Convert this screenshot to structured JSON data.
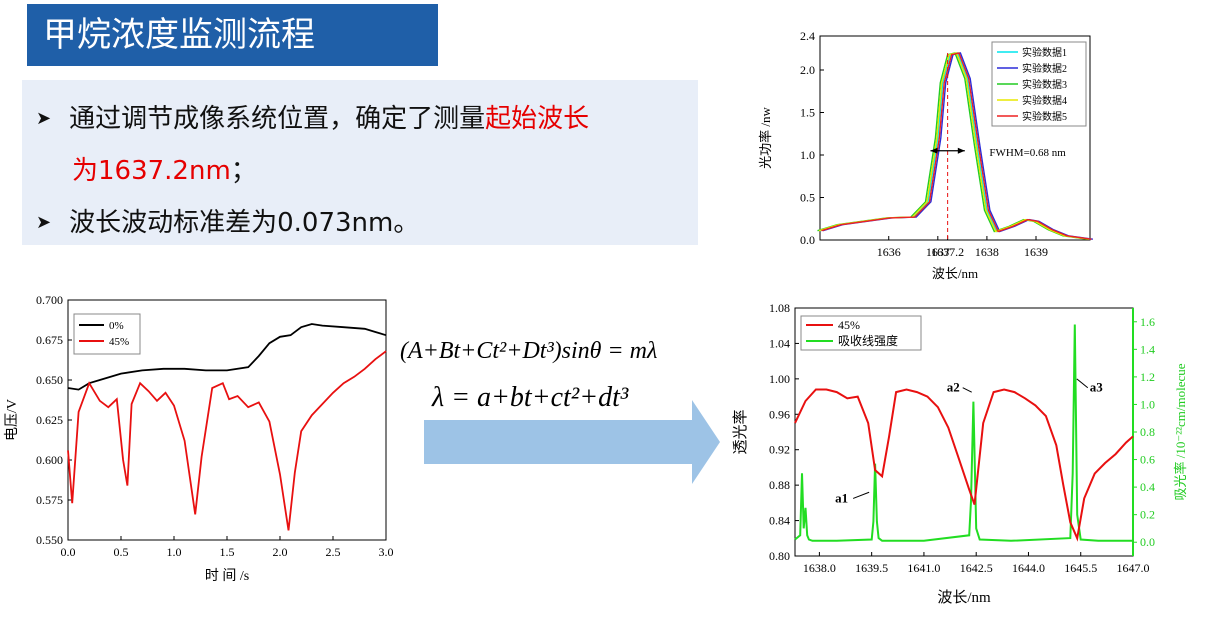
{
  "slide": {
    "title": "甲烷浓度监测流程",
    "bullets": {
      "b1_prefix": "通过调节成像系统位置，确定了测量",
      "b1_red1": "起始波长",
      "b1_red2": "为1637.2nm",
      "b1_suffix": "；",
      "b2": "波长波动标准差为0.073nm。"
    },
    "formula1": "(A+Bt+Ct²+Dt³)sinθ = mλ",
    "formula2": "λ = a+bt+ct²+dt³"
  },
  "chart_data": [
    {
      "id": "spectrum",
      "type": "line",
      "xlabel": "波长/nm",
      "ylabel": "光功率 /nw",
      "xlim": [
        1634.6,
        1640.1
      ],
      "ylim": [
        0,
        2.4
      ],
      "xticks": [
        {
          "v": 1636,
          "t": "1636"
        },
        {
          "v": 1637,
          "t": "1637"
        },
        {
          "v": 1637.2,
          "t": "1637.2"
        },
        {
          "v": 1638,
          "t": "1638"
        },
        {
          "v": 1639,
          "t": "1639"
        }
      ],
      "yticks": [
        0.0,
        0.5,
        1.0,
        1.5,
        2.0,
        2.4
      ],
      "annotation": "FWHM=0.68 nm",
      "legend": "top-right",
      "series": [
        {
          "name": "实验数据1",
          "color": "#00e5ee",
          "shift": 0.0
        },
        {
          "name": "实验数据2",
          "color": "#2b2bd9",
          "shift": 0.06
        },
        {
          "name": "实验数据3",
          "color": "#22cc22",
          "shift": -0.05
        },
        {
          "name": "实验数据4",
          "color": "#e8e800",
          "shift": -0.02
        },
        {
          "name": "实验数据5",
          "color": "#ee2222",
          "shift": 0.03
        }
      ],
      "profile_x": [
        1634.6,
        1635.0,
        1635.5,
        1636.0,
        1636.5,
        1636.8,
        1637.0,
        1637.1,
        1637.25,
        1637.4,
        1637.6,
        1637.8,
        1638.0,
        1638.2,
        1638.5,
        1638.8,
        1639.0,
        1639.3,
        1639.6,
        1640.1
      ],
      "profile_y": [
        0.11,
        0.18,
        0.22,
        0.26,
        0.27,
        0.45,
        1.2,
        1.85,
        2.18,
        2.2,
        1.9,
        1.1,
        0.35,
        0.1,
        0.16,
        0.24,
        0.22,
        0.12,
        0.05,
        0.01
      ]
    },
    {
      "id": "voltage",
      "type": "line",
      "xlabel": "时 间 /s",
      "ylabel": "电压/V",
      "xlim": [
        0,
        3.0
      ],
      "ylim": [
        0.55,
        0.7
      ],
      "xticks": [
        0.0,
        0.5,
        1.0,
        1.5,
        2.0,
        2.5,
        3.0
      ],
      "yticks": [
        0.55,
        0.575,
        0.6,
        0.625,
        0.65,
        0.675,
        0.7
      ],
      "legend": "top-left",
      "series": [
        {
          "name": "0%",
          "color": "#000000",
          "x": [
            0,
            0.1,
            0.2,
            0.3,
            0.5,
            0.7,
            0.9,
            1.1,
            1.3,
            1.5,
            1.7,
            1.8,
            1.9,
            2.0,
            2.1,
            2.2,
            2.3,
            2.4,
            2.6,
            2.8,
            2.9,
            3.0
          ],
          "y": [
            0.645,
            0.644,
            0.648,
            0.65,
            0.654,
            0.656,
            0.657,
            0.657,
            0.656,
            0.656,
            0.658,
            0.665,
            0.673,
            0.677,
            0.678,
            0.683,
            0.685,
            0.684,
            0.683,
            0.682,
            0.68,
            0.678
          ]
        },
        {
          "name": "45%",
          "color": "#e81010",
          "x": [
            0,
            0.04,
            0.1,
            0.2,
            0.3,
            0.38,
            0.46,
            0.52,
            0.56,
            0.6,
            0.68,
            0.76,
            0.84,
            0.92,
            1.0,
            1.1,
            1.2,
            1.26,
            1.36,
            1.46,
            1.52,
            1.6,
            1.7,
            1.8,
            1.9,
            2.0,
            2.08,
            2.14,
            2.2,
            2.3,
            2.4,
            2.5,
            2.6,
            2.7,
            2.8,
            2.9,
            3.0
          ],
          "y": [
            0.606,
            0.573,
            0.63,
            0.648,
            0.637,
            0.633,
            0.638,
            0.6,
            0.584,
            0.635,
            0.648,
            0.643,
            0.637,
            0.642,
            0.634,
            0.612,
            0.566,
            0.602,
            0.645,
            0.648,
            0.638,
            0.64,
            0.633,
            0.636,
            0.624,
            0.591,
            0.556,
            0.592,
            0.618,
            0.628,
            0.635,
            0.642,
            0.648,
            0.652,
            0.657,
            0.663,
            0.668
          ]
        }
      ]
    },
    {
      "id": "transmittance",
      "type": "line",
      "xlabel": "波长/nm",
      "ylabel": "透光率",
      "y2label": "吸光率 /10⁻²²cm/molecue",
      "xlim": [
        1637.3,
        1647.0
      ],
      "ylim": [
        0.8,
        1.08
      ],
      "y2lim": [
        -0.1,
        1.7
      ],
      "xticks": [
        1638.0,
        1639.5,
        1641.0,
        1642.5,
        1644.0,
        1645.5,
        1647.0
      ],
      "yticks": [
        0.8,
        0.84,
        0.88,
        0.92,
        0.96,
        1.0,
        1.04,
        1.08
      ],
      "y2ticks": [
        0.0,
        0.2,
        0.4,
        0.6,
        0.8,
        1.0,
        1.2,
        1.4,
        1.6
      ],
      "legend": "top-left",
      "annotations": [
        {
          "label": "a1",
          "x": 1639.6
        },
        {
          "label": "a2",
          "x": 1642.4
        },
        {
          "label": "a3",
          "x": 1645.3
        }
      ],
      "series": [
        {
          "name": "45%",
          "color": "#e81010",
          "axis": "left",
          "x": [
            1637.3,
            1637.6,
            1637.9,
            1638.2,
            1638.5,
            1638.8,
            1639.1,
            1639.4,
            1639.6,
            1639.8,
            1640.0,
            1640.2,
            1640.5,
            1640.8,
            1641.1,
            1641.4,
            1641.7,
            1642.0,
            1642.3,
            1642.45,
            1642.7,
            1643.0,
            1643.3,
            1643.6,
            1643.9,
            1644.2,
            1644.5,
            1644.8,
            1645.0,
            1645.2,
            1645.4,
            1645.6,
            1645.9,
            1646.2,
            1646.5,
            1646.8,
            1647.0
          ],
          "y": [
            0.95,
            0.975,
            0.988,
            0.988,
            0.985,
            0.978,
            0.98,
            0.95,
            0.897,
            0.89,
            0.935,
            0.985,
            0.988,
            0.985,
            0.98,
            0.968,
            0.945,
            0.91,
            0.875,
            0.858,
            0.95,
            0.985,
            0.988,
            0.985,
            0.978,
            0.97,
            0.958,
            0.925,
            0.88,
            0.838,
            0.82,
            0.865,
            0.893,
            0.905,
            0.915,
            0.928,
            0.935
          ]
        },
        {
          "name": "吸收线强度",
          "color": "#22dd22",
          "axis": "right",
          "x": [
            1637.3,
            1637.45,
            1637.5,
            1637.55,
            1637.6,
            1637.65,
            1637.7,
            1637.8,
            1638.5,
            1639.5,
            1639.55,
            1639.6,
            1639.65,
            1639.7,
            1639.8,
            1641.0,
            1642.3,
            1642.35,
            1642.42,
            1642.5,
            1642.6,
            1643.5,
            1645.2,
            1645.27,
            1645.33,
            1645.4,
            1645.5,
            1646.0,
            1647.0
          ],
          "y": [
            0.02,
            0.05,
            0.5,
            0.1,
            0.25,
            0.05,
            0.02,
            0.01,
            0.01,
            0.02,
            0.15,
            0.57,
            0.15,
            0.03,
            0.01,
            0.01,
            0.05,
            0.3,
            1.02,
            0.1,
            0.02,
            0.01,
            0.03,
            0.5,
            1.58,
            0.2,
            0.02,
            0.01,
            0.01
          ]
        }
      ]
    }
  ]
}
